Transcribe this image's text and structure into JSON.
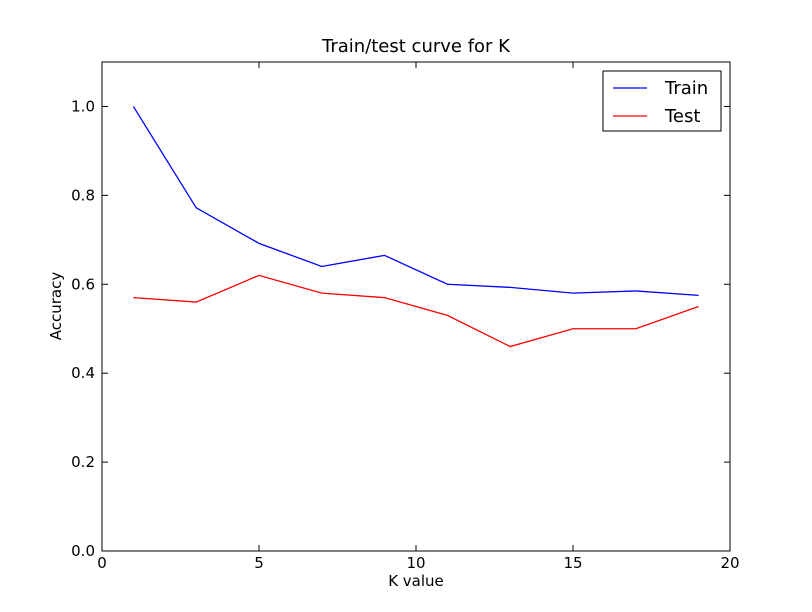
{
  "chart_data": {
    "type": "line",
    "title": "Train/test curve for K",
    "xlabel": "K value",
    "ylabel": "Accuracy",
    "xlim": [
      0,
      20
    ],
    "ylim": [
      0.0,
      1.1
    ],
    "x_ticks": [
      0,
      5,
      10,
      15,
      20
    ],
    "x_tick_labels": [
      "0",
      "5",
      "10",
      "15",
      "20"
    ],
    "y_ticks": [
      0.0,
      0.2,
      0.4,
      0.6,
      0.8,
      1.0
    ],
    "y_tick_labels": [
      "0.0",
      "0.2",
      "0.4",
      "0.6",
      "0.8",
      "1.0"
    ],
    "grid": false,
    "legend_position": "top-right",
    "x": [
      1,
      3,
      5,
      7,
      9,
      11,
      13,
      15,
      17,
      19
    ],
    "series": [
      {
        "name": "Train",
        "color": "#0000ff",
        "values": [
          1.0,
          0.772,
          0.692,
          0.64,
          0.665,
          0.6,
          0.593,
          0.58,
          0.585,
          0.575
        ]
      },
      {
        "name": "Test",
        "color": "#ff0000",
        "values": [
          0.57,
          0.56,
          0.62,
          0.58,
          0.57,
          0.53,
          0.46,
          0.5,
          0.5,
          0.55
        ]
      }
    ]
  }
}
